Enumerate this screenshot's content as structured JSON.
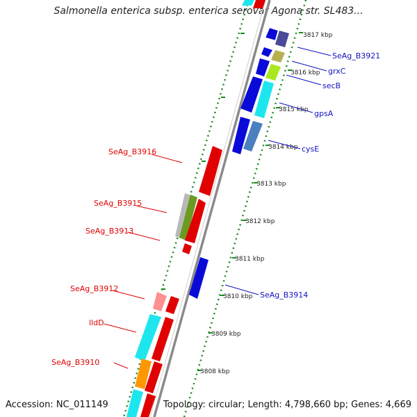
{
  "title": "Salmonella enterica subsp. enterica serovar Agona str. SL483...",
  "footer": {
    "accession": "Accession: NC_011149",
    "summary": "Topology: circular; Length: 4,798,660 bp; Genes: 4,669"
  },
  "ticks": [
    {
      "label": "3817 kbp"
    },
    {
      "label": "3816 kbp"
    },
    {
      "label": "3815 kbp"
    },
    {
      "label": "3814 kbp"
    },
    {
      "label": "3813 kbp"
    },
    {
      "label": "3812 kbp"
    },
    {
      "label": "3811 kbp"
    },
    {
      "label": "3810 kbp"
    },
    {
      "label": "3809 kbp"
    },
    {
      "label": "3808 kbp"
    }
  ],
  "forward_labels": [
    {
      "text": "SeAg_B3921"
    },
    {
      "text": "grxC"
    },
    {
      "text": "secB"
    },
    {
      "text": "gpsA"
    },
    {
      "text": "cysE"
    },
    {
      "text": "SeAg_B3914"
    }
  ],
  "reverse_labels": [
    {
      "text": "SeAg_B3916"
    },
    {
      "text": "SeAg_B3915"
    },
    {
      "text": "SeAg_B3913"
    },
    {
      "text": "SeAg_B3912"
    },
    {
      "text": "lldD"
    },
    {
      "text": "SeAg_B3910"
    }
  ],
  "colors": {
    "backbone": "#8a8a8a",
    "tick": "#1a8a1a",
    "forward_cds": "#0a0ad8",
    "reverse_cds": "#e00000",
    "label_forward": "#1010c0",
    "label_reverse": "#e00000",
    "cyan_feature": "#1ee6ee",
    "orange_feature": "#ff9800",
    "salmon_feature": "#ff9090",
    "olive_feature": "#b8b050",
    "lime_feature": "#a8e820",
    "steel_feature": "#4a7fc0",
    "navy_feature": "#4a4a9a",
    "gray_feature": "#b8b8b8",
    "green_feature": "#6a9a20"
  }
}
